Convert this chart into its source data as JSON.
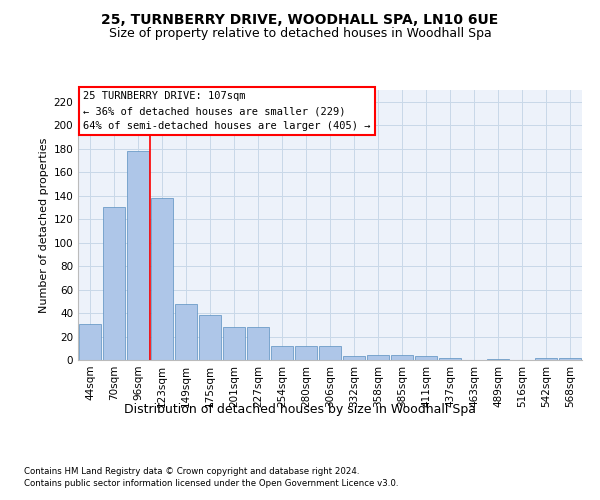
{
  "title": "25, TURNBERRY DRIVE, WOODHALL SPA, LN10 6UE",
  "subtitle": "Size of property relative to detached houses in Woodhall Spa",
  "xlabel": "Distribution of detached houses by size in Woodhall Spa",
  "ylabel": "Number of detached properties",
  "footnote1": "Contains HM Land Registry data © Crown copyright and database right 2024.",
  "footnote2": "Contains public sector information licensed under the Open Government Licence v3.0.",
  "categories": [
    "44sqm",
    "70sqm",
    "96sqm",
    "123sqm",
    "149sqm",
    "175sqm",
    "201sqm",
    "227sqm",
    "254sqm",
    "280sqm",
    "306sqm",
    "332sqm",
    "358sqm",
    "385sqm",
    "411sqm",
    "437sqm",
    "463sqm",
    "489sqm",
    "516sqm",
    "542sqm",
    "568sqm"
  ],
  "values": [
    31,
    130,
    178,
    138,
    48,
    38,
    28,
    28,
    12,
    12,
    12,
    3,
    4,
    4,
    3,
    2,
    0,
    1,
    0,
    2,
    2
  ],
  "bar_color": "#aec6e8",
  "bar_edge_color": "#5a8fc0",
  "grid_color": "#c8d8e8",
  "background_color": "#edf2fa",
  "annotation_box_text": "25 TURNBERRY DRIVE: 107sqm\n← 36% of detached houses are smaller (229)\n64% of semi-detached houses are larger (405) →",
  "red_line_x": 2.5,
  "ylim": [
    0,
    230
  ],
  "yticks": [
    0,
    20,
    40,
    60,
    80,
    100,
    120,
    140,
    160,
    180,
    200,
    220
  ],
  "title_fontsize": 10,
  "subtitle_fontsize": 9,
  "xlabel_fontsize": 9,
  "ylabel_fontsize": 8,
  "tick_fontsize": 7.5,
  "annot_fontsize": 7.5
}
